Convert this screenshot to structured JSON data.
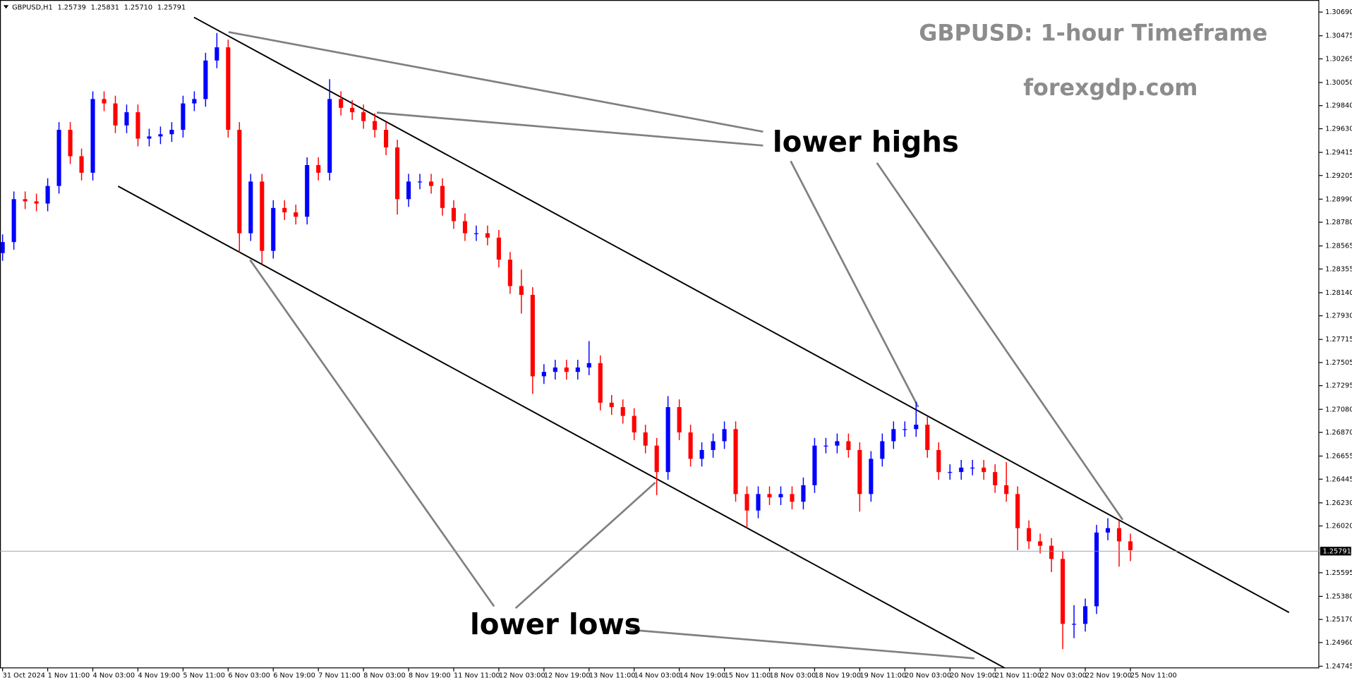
{
  "chart_data": {
    "type": "candlestick",
    "header": {
      "symbol": "GBPUSD,H1",
      "ohlc": [
        1.25739,
        1.25831,
        {
          "value": 1.2571,
          "label": "1.25710"
        },
        1.25791
      ]
    },
    "title": "GBPUSD: 1-hour Timeframe",
    "subtitle": "forexgdp.com",
    "annotations": [
      "lower highs",
      "lower lows"
    ],
    "up_color": "#0000ff",
    "down_color": "#ff0000",
    "x_labels": [
      "31 Oct 2024",
      "1 Nov 11:00",
      "4 Nov 03:00",
      "4 Nov 19:00",
      "5 Nov 11:00",
      "6 Nov 03:00",
      "6 Nov 19:00",
      "7 Nov 11:00",
      "8 Nov 03:00",
      "8 Nov 19:00",
      "11 Nov 11:00",
      "12 Nov 03:00",
      "12 Nov 19:00",
      "13 Nov 11:00",
      "14 Nov 03:00",
      "14 Nov 19:00",
      "15 Nov 11:00",
      "18 Nov 03:00",
      "18 Nov 19:00",
      "19 Nov 11:00",
      "20 Nov 03:00",
      "20 Nov 19:00",
      "21 Nov 11:00",
      "22 Nov 03:00",
      "22 Nov 19:00",
      "25 Nov 11:00"
    ],
    "ylim": [
      1.2473,
      1.308
    ],
    "yticks": [
      {
        "value": 1.3069,
        "label": "1.30690"
      },
      1.30475,
      1.30265,
      {
        "value": 1.3005,
        "label": "1.30050"
      },
      {
        "value": 1.2984,
        "label": "1.29840"
      },
      {
        "value": 1.2963,
        "label": "1.29630"
      },
      1.29415,
      1.29205,
      {
        "value": 1.2899,
        "label": "1.28990"
      },
      {
        "value": 1.2878,
        "label": "1.28780"
      },
      1.28565,
      1.28355,
      {
        "value": 1.2814,
        "label": "1.28140"
      },
      {
        "value": 1.2793,
        "label": "1.27930"
      },
      1.27715,
      1.27505,
      1.27295,
      {
        "value": 1.2708,
        "label": "1.27080"
      },
      {
        "value": 1.2687,
        "label": "1.26870"
      },
      1.26655,
      1.26445,
      {
        "value": 1.2623,
        "label": "1.26230"
      },
      {
        "value": 1.2602,
        "label": "1.26020"
      },
      1.25595,
      {
        "value": 1.2538,
        "label": "1.25380"
      },
      {
        "value": 1.2517,
        "label": "1.25170"
      },
      {
        "value": 1.2496,
        "label": "1.24960"
      },
      1.24745
    ],
    "current_price": 1.25791,
    "open": [
      1.285,
      1.286,
      1.2899,
      1.2897,
      1.2895,
      1.2911,
      1.2962,
      1.2938,
      1.2923,
      1.299,
      1.2986,
      1.2966,
      1.2978,
      1.2954,
      1.2956,
      1.2958,
      1.2962,
      1.2986,
      1.299,
      1.3025,
      1.3037,
      1.2962,
      1.2868,
      1.2915,
      1.2852,
      1.2891,
      1.2887,
      1.2883,
      1.293,
      1.2923,
      1.299,
      1.2982,
      1.2978,
      1.297,
      1.2962,
      1.2946,
      1.2899,
      1.2915,
      1.2915,
      1.2911,
      1.2891,
      1.2879,
      1.2868,
      1.2868,
      1.2864,
      1.2844,
      1.282,
      1.2812,
      1.2738,
      1.2742,
      1.2746,
      1.2742,
      1.2746,
      1.275,
      1.2714,
      1.271,
      1.2702,
      1.2687,
      1.2675,
      1.2651,
      1.271,
      1.2687,
      1.2663,
      1.2671,
      1.2679,
      1.269,
      1.2631,
      1.2616,
      1.2631,
      1.2628,
      1.2631,
      1.2624,
      1.2639,
      1.2675,
      1.2675,
      1.2679,
      1.2671,
      1.2631,
      1.2663,
      1.2679,
      1.269,
      1.269,
      1.2694,
      1.2671,
      1.2651,
      1.2651,
      1.2655,
      1.2655,
      1.2651,
      1.2639,
      1.2631,
      1.26,
      1.2588,
      1.2584,
      1.2572,
      1.2513,
      1.2513,
      1.2529,
      1.2596,
      1.26,
      1.2588
    ],
    "high": [
      1.2867,
      1.2906,
      1.2906,
      1.2904,
      1.2918,
      1.2969,
      1.2969,
      1.2945,
      1.2997,
      1.2997,
      1.2993,
      1.2985,
      1.2985,
      1.2963,
      1.2965,
      1.2969,
      1.2993,
      1.2997,
      1.3032,
      1.305,
      1.3044,
      1.2969,
      1.2922,
      1.2922,
      1.2898,
      1.2898,
      1.2894,
      1.2937,
      1.2937,
      1.3008,
      1.2997,
      1.2989,
      1.2985,
      1.2977,
      1.2969,
      1.2953,
      1.2922,
      1.2922,
      1.2922,
      1.2918,
      1.2898,
      1.2886,
      1.2875,
      1.2875,
      1.2871,
      1.2851,
      1.2835,
      1.2819,
      1.2749,
      1.2753,
      1.2753,
      1.2753,
      1.277,
      1.2757,
      1.2721,
      1.2717,
      1.2709,
      1.2694,
      1.2682,
      1.272,
      1.2717,
      1.2694,
      1.2678,
      1.2686,
      1.2697,
      1.2697,
      1.2638,
      1.2638,
      1.2638,
      1.2638,
      1.2638,
      1.2646,
      1.2682,
      1.2682,
      1.2686,
      1.2686,
      1.2678,
      1.267,
      1.2686,
      1.2697,
      1.2697,
      1.2715,
      1.2701,
      1.2678,
      1.2658,
      1.2662,
      1.2662,
      1.2662,
      1.2658,
      1.266,
      1.2638,
      1.2607,
      1.2595,
      1.2591,
      1.2579,
      1.253,
      1.2536,
      1.2603,
      1.2609,
      1.2607,
      1.2595
    ],
    "low": [
      1.2843,
      1.2853,
      1.289,
      1.2888,
      1.2888,
      1.2904,
      1.2931,
      1.2916,
      1.2916,
      1.2979,
      1.2959,
      1.2959,
      1.2947,
      1.2947,
      1.2949,
      1.2951,
      1.2955,
      1.2979,
      1.2983,
      1.3018,
      1.2955,
      1.285,
      1.2861,
      1.284,
      1.2845,
      1.288,
      1.2876,
      1.2876,
      1.2916,
      1.2916,
      1.2975,
      1.2971,
      1.2963,
      1.2955,
      1.2939,
      1.2885,
      1.2892,
      1.2908,
      1.2904,
      1.2884,
      1.2872,
      1.2861,
      1.2861,
      1.2857,
      1.2837,
      1.2813,
      1.2795,
      1.2722,
      1.2731,
      1.2735,
      1.2735,
      1.2735,
      1.2739,
      1.2707,
      1.2703,
      1.2695,
      1.268,
      1.2668,
      1.263,
      1.2644,
      1.268,
      1.2656,
      1.2656,
      1.2664,
      1.2672,
      1.2624,
      1.26,
      1.2609,
      1.2621,
      1.2621,
      1.2617,
      1.2617,
      1.2632,
      1.2668,
      1.2668,
      1.2664,
      1.2615,
      1.2624,
      1.2656,
      1.2672,
      1.2683,
      1.2683,
      1.2664,
      1.2644,
      1.2644,
      1.2644,
      1.2648,
      1.2644,
      1.2632,
      1.2624,
      1.258,
      1.2581,
      1.2577,
      1.256,
      1.249,
      1.25,
      1.2506,
      1.2522,
      1.2589,
      1.2565,
      1.257
    ],
    "close": [
      1.286,
      1.2899,
      1.2897,
      1.2895,
      1.2911,
      1.2962,
      1.2938,
      1.2923,
      1.299,
      1.2986,
      1.2966,
      1.2978,
      1.2954,
      1.2956,
      1.2958,
      1.2962,
      1.2986,
      1.299,
      1.3025,
      1.3037,
      1.2962,
      1.2868,
      1.2915,
      1.2852,
      1.2891,
      1.2887,
      1.2883,
      1.293,
      1.2923,
      1.299,
      1.2982,
      1.2978,
      1.297,
      1.2962,
      1.2946,
      1.2899,
      1.2915,
      1.2915,
      1.2911,
      1.2891,
      1.2879,
      1.2868,
      1.2868,
      1.2864,
      1.2844,
      1.282,
      1.2812,
      1.2738,
      1.2742,
      1.2746,
      1.2742,
      1.2746,
      1.275,
      1.2714,
      1.271,
      1.2702,
      1.2687,
      1.2675,
      1.2651,
      1.271,
      1.2687,
      1.2663,
      1.2671,
      1.2679,
      1.269,
      1.2631,
      1.2616,
      1.2631,
      1.2628,
      1.2631,
      1.2624,
      1.2639,
      1.2675,
      1.2675,
      1.2679,
      1.2671,
      1.2631,
      1.2663,
      1.2679,
      1.269,
      1.269,
      1.2694,
      1.2671,
      1.2651,
      1.2651,
      1.2655,
      1.2655,
      1.2651,
      1.2639,
      1.2631,
      1.26,
      1.2588,
      1.2584,
      1.2572,
      1.2513,
      1.2513,
      1.2529,
      1.2596,
      1.26,
      1.2588,
      1.258
    ]
  }
}
